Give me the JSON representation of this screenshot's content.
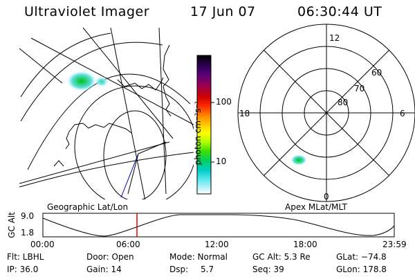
{
  "header": {
    "instrument": "Ultraviolet Imager",
    "date": "17 Jun 07",
    "time": "06:30:44 UT"
  },
  "left_panel": {
    "projection_label": "Geographic Lat/Lon"
  },
  "colorbar": {
    "unit_label": "photon cm⁻²s⁻¹",
    "ticks": [
      "100",
      "10"
    ],
    "colors": [
      "#000000",
      "#2a0050",
      "#5a0078",
      "#9c0050",
      "#d00000",
      "#ff3000",
      "#ff8000",
      "#ffc000",
      "#ffff00",
      "#b8ff00",
      "#40e000",
      "#00d060",
      "#00d0c8",
      "#60e8f0",
      "#c0f4f8",
      "#ffffff"
    ]
  },
  "right_panel": {
    "projection_label": "Apex MLat/MLT",
    "mlt_labels": {
      "top": "12",
      "left": "18",
      "right": "6",
      "bottom": "0"
    },
    "lat_labels": [
      "60",
      "70",
      "80"
    ]
  },
  "orbit_plot": {
    "ylabel": "GC Alt",
    "y_ticks": [
      "9.0",
      "1.8"
    ],
    "x_ticks": [
      "00:00",
      "06:00",
      "12:00",
      "18:00",
      "23:59"
    ],
    "marker_color": "#e00000"
  },
  "footer": {
    "filter": "Flt: LBHL",
    "door": "Door: Open",
    "mode": "Mode: Normal",
    "gc_alt": "GC Alt: 5.3 Re",
    "glat": "GLat: −74.8",
    "ip": "IP: 36.0",
    "gain": "Gain: 14",
    "dsp_label": "Dsp:",
    "dsp_value": "5.7",
    "seq": "Seq: 39",
    "glon": "GLon: 178.8"
  }
}
